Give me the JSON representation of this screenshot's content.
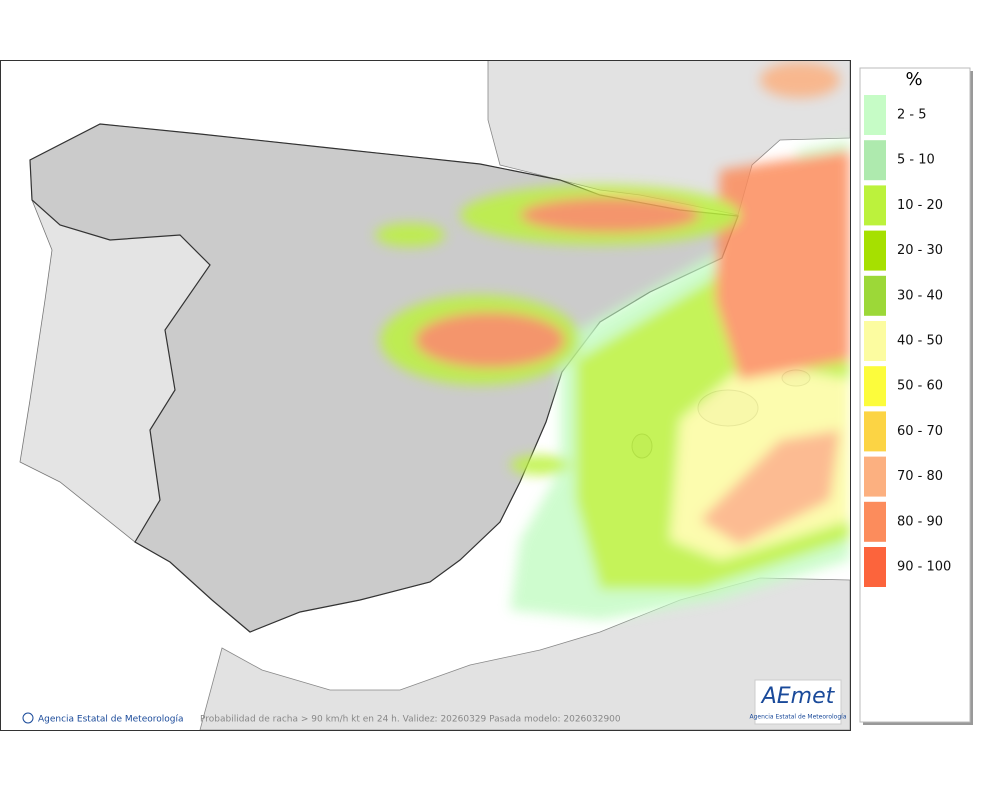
{
  "legend": {
    "title": "%",
    "items": [
      {
        "label": "2 - 5",
        "color": "#c6fcc6"
      },
      {
        "label": "5 - 10",
        "color": "#aeeaae"
      },
      {
        "label": "10 - 20",
        "color": "#bcf23c"
      },
      {
        "label": "20 - 30",
        "color": "#a6e000"
      },
      {
        "label": "30 - 40",
        "color": "#9cd838"
      },
      {
        "label": "40 - 50",
        "color": "#fcfca0"
      },
      {
        "label": "50 - 60",
        "color": "#fcfc3c"
      },
      {
        "label": "60 - 70",
        "color": "#fcd444"
      },
      {
        "label": "70 - 80",
        "color": "#fcb080"
      },
      {
        "label": "80 - 90",
        "color": "#fc8c5c"
      },
      {
        "label": "90 - 100",
        "color": "#fc643c"
      }
    ]
  },
  "footer": {
    "credit": "Agencia Estatal de Meteorología",
    "caption": "Probabilidad de racha > 90 km/h kt en 24 h. Validez: 20260329 Pasada modelo: 2026032900"
  },
  "logo": {
    "name": "AEmet",
    "subtitle": "Agencia Estatal de Meteorología"
  }
}
